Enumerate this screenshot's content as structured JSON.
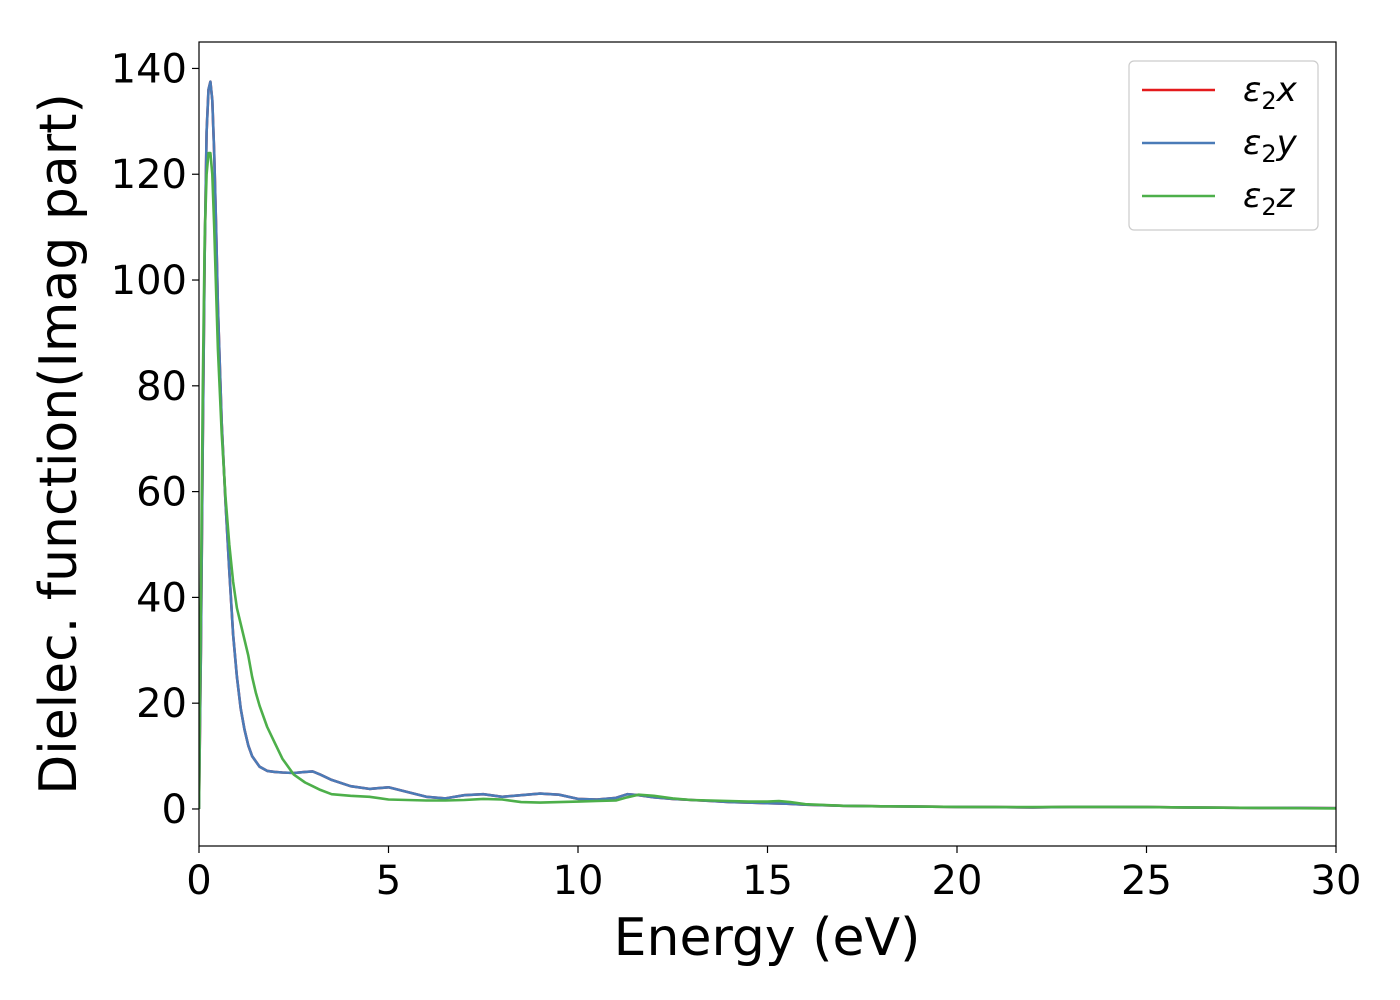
{
  "chart_data": {
    "type": "line",
    "xlabel": "Energy (eV)",
    "ylabel": "Dielec. function(Imag part)",
    "xlim": [
      0,
      30
    ],
    "ylim": [
      -7,
      145
    ],
    "xticks": [
      0,
      5,
      10,
      15,
      20,
      25,
      30
    ],
    "yticks": [
      0,
      20,
      40,
      60,
      80,
      100,
      120,
      140
    ],
    "grid": false,
    "legend_position": "top-right",
    "series": [
      {
        "name": "ε2x",
        "legend_base": "ε",
        "legend_sub": "2",
        "legend_suffix": "x",
        "color": "#e41a1c",
        "x": [
          0,
          0.05,
          0.1,
          0.15,
          0.2,
          0.25,
          0.3,
          0.35,
          0.4,
          0.45,
          0.5,
          0.6,
          0.7,
          0.8,
          0.9,
          1.0,
          1.1,
          1.2,
          1.3,
          1.4,
          1.5,
          1.6,
          1.8,
          2.0,
          2.2,
          2.5,
          2.8,
          3.0,
          3.2,
          3.5,
          4.0,
          4.5,
          5.0,
          5.5,
          6.0,
          6.5,
          7.0,
          7.5,
          8.0,
          8.5,
          9.0,
          9.5,
          10.0,
          10.5,
          11.0,
          11.3,
          11.6,
          12.0,
          12.5,
          13.0,
          13.5,
          14.0,
          14.5,
          15.0,
          15.5,
          16.0,
          17.0,
          18.0,
          19.0,
          20.0,
          21.0,
          22.0,
          23.0,
          24.0,
          25.0,
          26.0,
          27.0,
          28.0,
          29.0,
          30.0
        ],
        "y": [
          0,
          30,
          70,
          105,
          128,
          136,
          137.5,
          134,
          124,
          110,
          95,
          73,
          58,
          45,
          33,
          25,
          19,
          15,
          12,
          10,
          9,
          8,
          7.2,
          7,
          6.9,
          6.8,
          7,
          7.1,
          6.5,
          5.5,
          4.3,
          3.8,
          4.1,
          3.2,
          2.3,
          2.0,
          2.6,
          2.8,
          2.3,
          2.6,
          2.9,
          2.7,
          1.9,
          1.8,
          2.1,
          2.8,
          2.6,
          2.2,
          1.9,
          1.7,
          1.5,
          1.3,
          1.2,
          1.1,
          1.0,
          0.8,
          0.6,
          0.5,
          0.45,
          0.4,
          0.35,
          0.3,
          0.4,
          0.4,
          0.35,
          0.3,
          0.25,
          0.2,
          0.2,
          0.15
        ]
      },
      {
        "name": "ε2y",
        "legend_base": "ε",
        "legend_sub": "2",
        "legend_suffix": "y",
        "color": "#4a7bb7",
        "x": [
          0,
          0.05,
          0.1,
          0.15,
          0.2,
          0.25,
          0.3,
          0.35,
          0.4,
          0.45,
          0.5,
          0.6,
          0.7,
          0.8,
          0.9,
          1.0,
          1.1,
          1.2,
          1.3,
          1.4,
          1.5,
          1.6,
          1.8,
          2.0,
          2.2,
          2.5,
          2.8,
          3.0,
          3.2,
          3.5,
          4.0,
          4.5,
          5.0,
          5.5,
          6.0,
          6.5,
          7.0,
          7.5,
          8.0,
          8.5,
          9.0,
          9.5,
          10.0,
          10.5,
          11.0,
          11.3,
          11.6,
          12.0,
          12.5,
          13.0,
          13.5,
          14.0,
          14.5,
          15.0,
          15.5,
          16.0,
          17.0,
          18.0,
          19.0,
          20.0,
          21.0,
          22.0,
          23.0,
          24.0,
          25.0,
          26.0,
          27.0,
          28.0,
          29.0,
          30.0
        ],
        "y": [
          0,
          30,
          70,
          105,
          128,
          136,
          137.5,
          134,
          124,
          110,
          95,
          73,
          58,
          45,
          33,
          25,
          19,
          15,
          12,
          10,
          9,
          8,
          7.2,
          7,
          6.9,
          6.8,
          7,
          7.1,
          6.5,
          5.5,
          4.3,
          3.8,
          4.1,
          3.2,
          2.3,
          2.0,
          2.6,
          2.8,
          2.3,
          2.6,
          2.9,
          2.7,
          1.9,
          1.8,
          2.1,
          2.8,
          2.6,
          2.2,
          1.9,
          1.7,
          1.5,
          1.3,
          1.2,
          1.1,
          1.0,
          0.8,
          0.6,
          0.5,
          0.45,
          0.4,
          0.35,
          0.3,
          0.4,
          0.4,
          0.35,
          0.3,
          0.25,
          0.2,
          0.2,
          0.15
        ]
      },
      {
        "name": "ε2z",
        "legend_base": "ε",
        "legend_sub": "2",
        "legend_suffix": "z",
        "color": "#4daf4a",
        "x": [
          0,
          0.05,
          0.1,
          0.15,
          0.2,
          0.25,
          0.3,
          0.35,
          0.4,
          0.45,
          0.5,
          0.6,
          0.7,
          0.8,
          0.9,
          1.0,
          1.1,
          1.2,
          1.3,
          1.4,
          1.5,
          1.6,
          1.8,
          2.0,
          2.2,
          2.5,
          2.8,
          3.0,
          3.2,
          3.5,
          4.0,
          4.5,
          5.0,
          5.5,
          6.0,
          6.5,
          7.0,
          7.5,
          8.0,
          8.5,
          9.0,
          9.5,
          10.0,
          10.5,
          11.0,
          11.3,
          11.6,
          12.0,
          12.5,
          13.0,
          13.5,
          14.0,
          14.5,
          15.0,
          15.3,
          15.6,
          16.0,
          17.0,
          18.0,
          19.0,
          20.0,
          21.0,
          22.0,
          23.0,
          24.0,
          25.0,
          26.0,
          27.0,
          28.0,
          29.0,
          30.0
        ],
        "y": [
          0,
          40,
          80,
          108,
          120,
          124,
          124,
          120,
          110,
          98,
          87,
          71,
          59,
          50,
          43,
          38,
          35,
          32,
          29,
          25,
          22,
          19.5,
          15.5,
          12.5,
          9.5,
          6.5,
          5,
          4.3,
          3.6,
          2.8,
          2.5,
          2.3,
          1.8,
          1.7,
          1.6,
          1.6,
          1.7,
          1.9,
          1.8,
          1.3,
          1.2,
          1.3,
          1.4,
          1.5,
          1.6,
          2.2,
          2.7,
          2.5,
          2.0,
          1.7,
          1.6,
          1.5,
          1.4,
          1.4,
          1.5,
          1.3,
          0.9,
          0.6,
          0.5,
          0.45,
          0.4,
          0.35,
          0.35,
          0.4,
          0.4,
          0.35,
          0.3,
          0.25,
          0.2,
          0.15,
          0.1
        ]
      }
    ]
  }
}
